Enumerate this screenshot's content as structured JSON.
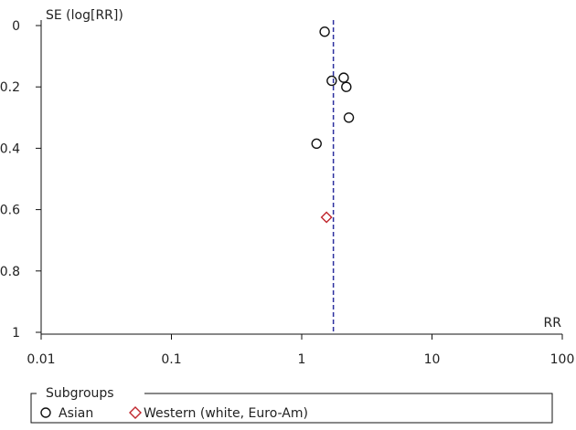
{
  "chart_data": {
    "type": "scatter",
    "title": "",
    "ylabel": "SE (log[RR])",
    "xlabel": "RR",
    "x_scale": "log",
    "xlim": [
      0.01,
      100
    ],
    "x_ticks": [
      0.01,
      0.1,
      1,
      10,
      100
    ],
    "x_tick_labels": [
      "0.01",
      "0.1",
      "1",
      "10",
      "100"
    ],
    "ylim": [
      0,
      1
    ],
    "y_inverted": true,
    "y_ticks": [
      0,
      0.2,
      0.4,
      0.6,
      0.8,
      1
    ],
    "y_tick_labels": [
      "0",
      "0.2",
      "0.4",
      "0.6",
      "0.8",
      "1"
    ],
    "grid": false,
    "reference_line": {
      "x": 1.75,
      "style": "dashed",
      "color": "#2b2f9e"
    },
    "series": [
      {
        "name": "Asian",
        "marker": "circle",
        "color": "#111111",
        "points": [
          {
            "x": 1.5,
            "y": 0.02
          },
          {
            "x": 1.7,
            "y": 0.18
          },
          {
            "x": 2.1,
            "y": 0.17
          },
          {
            "x": 2.2,
            "y": 0.2
          },
          {
            "x": 2.3,
            "y": 0.3
          },
          {
            "x": 1.3,
            "y": 0.385
          }
        ]
      },
      {
        "name": "Western (white, Euro-Am)",
        "marker": "diamond",
        "color": "#c0262d",
        "points": [
          {
            "x": 1.55,
            "y": 0.625
          }
        ]
      }
    ],
    "legend": {
      "title": "Subgroups",
      "placement": "bottom"
    }
  }
}
